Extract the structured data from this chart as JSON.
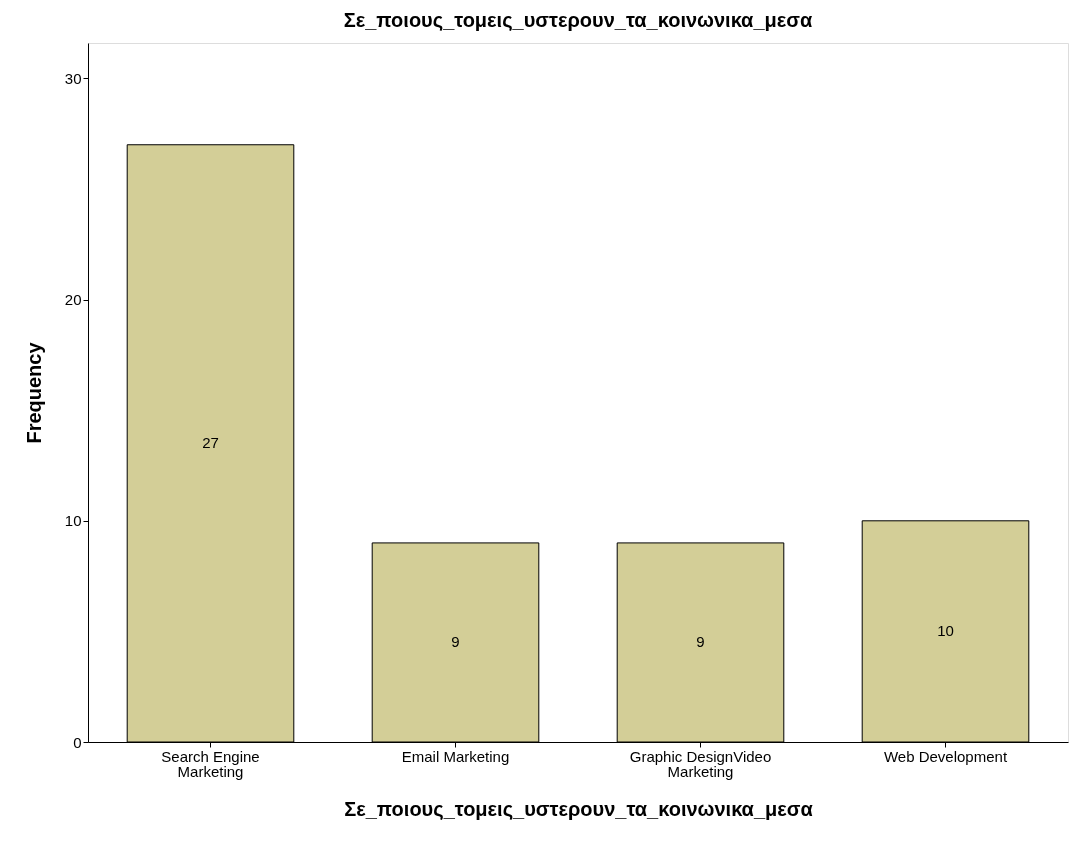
{
  "chart_data": {
    "type": "bar",
    "title": "Σε_ποιους_τομεις_υστερουν_τα_κοινωνικα_μεσα",
    "xlabel": "Σε_ποιους_τομεις_υστερουν_τα_κοινωνικα_μεσα",
    "ylabel": "Frequency",
    "categories": [
      "Search Engine Marketing",
      "Email Marketing",
      "Graphic DesignVideo Marketing",
      "Web Development"
    ],
    "values": [
      27,
      9,
      9,
      10
    ],
    "color": "#d3ce97",
    "ylim": [
      0,
      31.6
    ],
    "yticks": [
      0,
      10,
      20,
      30
    ],
    "grid": false,
    "data_labels": true
  }
}
